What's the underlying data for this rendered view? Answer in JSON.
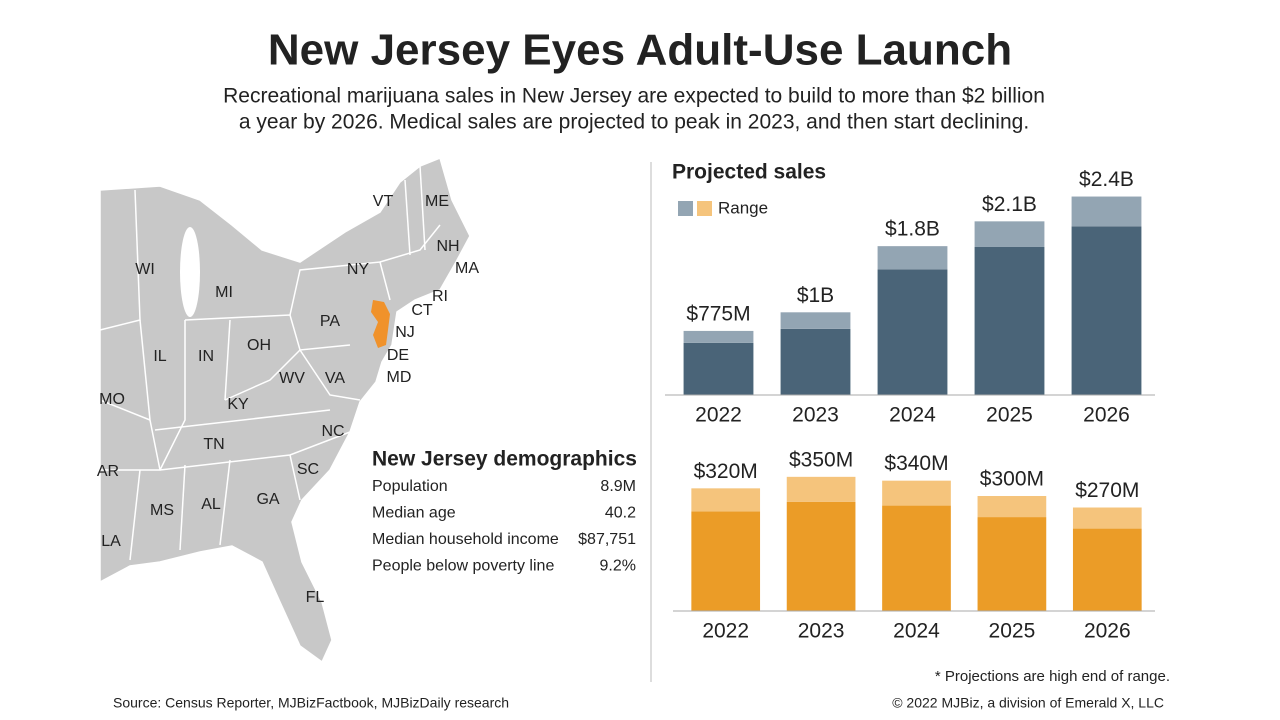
{
  "title": "New Jersey Eyes Adult-Use Launch",
  "subtitle": [
    "Recreational marijuana sales in New Jersey are expected to build to more than $2 billion",
    "a year by 2026. Medical sales are projected to peak in 2023, and then start declining."
  ],
  "map": {
    "states": [
      "VT",
      "ME",
      "NH",
      "MA",
      "WI",
      "MI",
      "NY",
      "RI",
      "CT",
      "PA",
      "NJ",
      "DE",
      "MD",
      "IL",
      "IN",
      "OH",
      "WV",
      "VA",
      "MO",
      "KY",
      "NC",
      "TN",
      "SC",
      "AR",
      "MS",
      "AL",
      "GA",
      "LA",
      "FL"
    ],
    "highlight": "NJ",
    "highlight_color": "#f0922b"
  },
  "demographics": {
    "title": "New Jersey demographics",
    "rows": [
      [
        "Population",
        "8.9M"
      ],
      [
        "Median age",
        "40.2"
      ],
      [
        "Median household income",
        "$87,751"
      ],
      [
        "People below poverty line",
        "9.2%"
      ]
    ]
  },
  "chart_data": [
    {
      "type": "bar",
      "title": "Projected sales",
      "legend": "Range",
      "categories": [
        "2022",
        "2023",
        "2024",
        "2025",
        "2026"
      ],
      "low": [
        630,
        800,
        1520,
        1790,
        2040
      ],
      "high": [
        775,
        1000,
        1800,
        2100,
        2400
      ],
      "value_labels": [
        "$775M",
        "$1B",
        "$1.8B",
        "$2.1B",
        "$2.4B"
      ],
      "colors": [
        "#4a6478",
        "#93a5b3"
      ],
      "ylim": [
        0,
        2600
      ]
    },
    {
      "type": "bar",
      "categories": [
        "2022",
        "2023",
        "2024",
        "2025",
        "2026"
      ],
      "low": [
        260,
        285,
        275,
        245,
        215
      ],
      "high": [
        320,
        350,
        340,
        300,
        270
      ],
      "value_labels": [
        "$320M",
        "$350M",
        "$340M",
        "$300M",
        "$270M"
      ],
      "colors": [
        "#eb9c27",
        "#f5c47c"
      ],
      "ylim": [
        0,
        420
      ]
    }
  ],
  "note": "* Projections are high end of range.",
  "source": "Source: Census Reporter, MJBizFactbook, MJBizDaily research",
  "copyright": "© 2022 MJBiz, a division of Emerald X, LLC"
}
